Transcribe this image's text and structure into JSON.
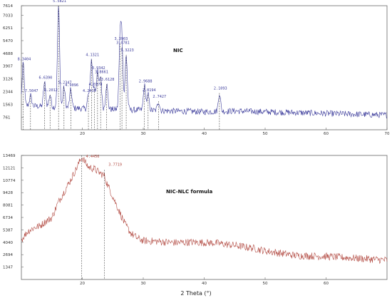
{
  "chart_data": [
    {
      "type": "line",
      "title": "NIC",
      "color": "#3a3a9a",
      "xlim": [
        10,
        70
      ],
      "ylim": [
        0,
        7614
      ],
      "y_ticks": [
        761,
        1563,
        2344,
        3126,
        3907,
        4688,
        5470,
        6251,
        7033,
        7614
      ],
      "x_ticks": [
        20,
        30,
        40,
        50,
        60,
        70
      ],
      "peaks": [
        {
          "x": 10.3,
          "y": 4050,
          "label": "8.3404"
        },
        {
          "x": 11.5,
          "y": 2100,
          "label": "7.5047"
        },
        {
          "x": 13.8,
          "y": 2900,
          "label": "6.6390"
        },
        {
          "x": 14.7,
          "y": 2150,
          "label": "6.2012"
        },
        {
          "x": 16.1,
          "y": 7614,
          "label": "5.5821"
        },
        {
          "x": 17.0,
          "y": 2600,
          "label": "5.2347"
        },
        {
          "x": 18.1,
          "y": 2450,
          "label": "4.9096"
        },
        {
          "x": 21.0,
          "y": 2100,
          "label": "4.2430"
        },
        {
          "x": 21.5,
          "y": 4300,
          "label": "4.1321"
        },
        {
          "x": 22.0,
          "y": 2500,
          "label": "4.0370"
        },
        {
          "x": 22.5,
          "y": 3500,
          "label": "3.9342"
        },
        {
          "x": 23.0,
          "y": 3250,
          "label": "3.8661"
        },
        {
          "x": 24.0,
          "y": 2800,
          "label": "3.6128"
        },
        {
          "x": 26.2,
          "y": 5300,
          "label": "3.3903"
        },
        {
          "x": 26.5,
          "y": 5050,
          "label": "3.4781"
        },
        {
          "x": 27.2,
          "y": 4600,
          "label": "3.3223"
        },
        {
          "x": 30.2,
          "y": 2700,
          "label": "2.9688"
        },
        {
          "x": 30.8,
          "y": 2150,
          "label": "2.8194"
        },
        {
          "x": 32.5,
          "y": 1750,
          "label": "2.7427"
        },
        {
          "x": 42.5,
          "y": 2250,
          "label": "2.1093"
        }
      ],
      "background": [
        [
          10,
          1500
        ],
        [
          15,
          1400
        ],
        [
          20,
          1300
        ],
        [
          25,
          1250
        ],
        [
          30,
          1200
        ],
        [
          35,
          1150
        ],
        [
          40,
          1100
        ],
        [
          45,
          1150
        ],
        [
          50,
          1100
        ],
        [
          55,
          1050
        ],
        [
          60,
          1000
        ],
        [
          65,
          950
        ],
        [
          70,
          900
        ]
      ]
    },
    {
      "type": "line",
      "title": "NIC-NLC formula",
      "color": "#b24a42",
      "xlim": [
        10,
        70
      ],
      "ylim": [
        0,
        13469
      ],
      "y_ticks": [
        1347,
        2694,
        4040,
        5387,
        6734,
        8081,
        9428,
        10774,
        12121,
        13469
      ],
      "x_ticks": [
        20,
        30,
        40,
        50,
        60
      ],
      "peaks": [
        {
          "x": 19.9,
          "y": 13469,
          "label": "4.4456"
        },
        {
          "x": 23.6,
          "y": 11900,
          "label": "3.7719"
        }
      ],
      "profile": [
        [
          10,
          4300
        ],
        [
          11,
          5200
        ],
        [
          12,
          5600
        ],
        [
          13,
          5800
        ],
        [
          14,
          6300
        ],
        [
          15,
          6700
        ],
        [
          16,
          8300
        ],
        [
          17,
          9500
        ],
        [
          18,
          10700
        ],
        [
          19,
          12000
        ],
        [
          19.9,
          13300
        ],
        [
          20.5,
          12700
        ],
        [
          21,
          12200
        ],
        [
          22,
          12000
        ],
        [
          23,
          11500
        ],
        [
          23.6,
          11300
        ],
        [
          24,
          10500
        ],
        [
          25,
          9000
        ],
        [
          26,
          7500
        ],
        [
          27,
          6000
        ],
        [
          28,
          5000
        ],
        [
          29,
          4500
        ],
        [
          30,
          4200
        ],
        [
          32,
          4150
        ],
        [
          35,
          4000
        ],
        [
          38,
          4050
        ],
        [
          40,
          4000
        ],
        [
          42,
          3950
        ],
        [
          45,
          3700
        ],
        [
          48,
          3400
        ],
        [
          50,
          3100
        ],
        [
          55,
          2600
        ],
        [
          60,
          2500
        ],
        [
          65,
          2300
        ],
        [
          70,
          2100
        ]
      ]
    }
  ],
  "xlabel": "2 Theta (°)"
}
